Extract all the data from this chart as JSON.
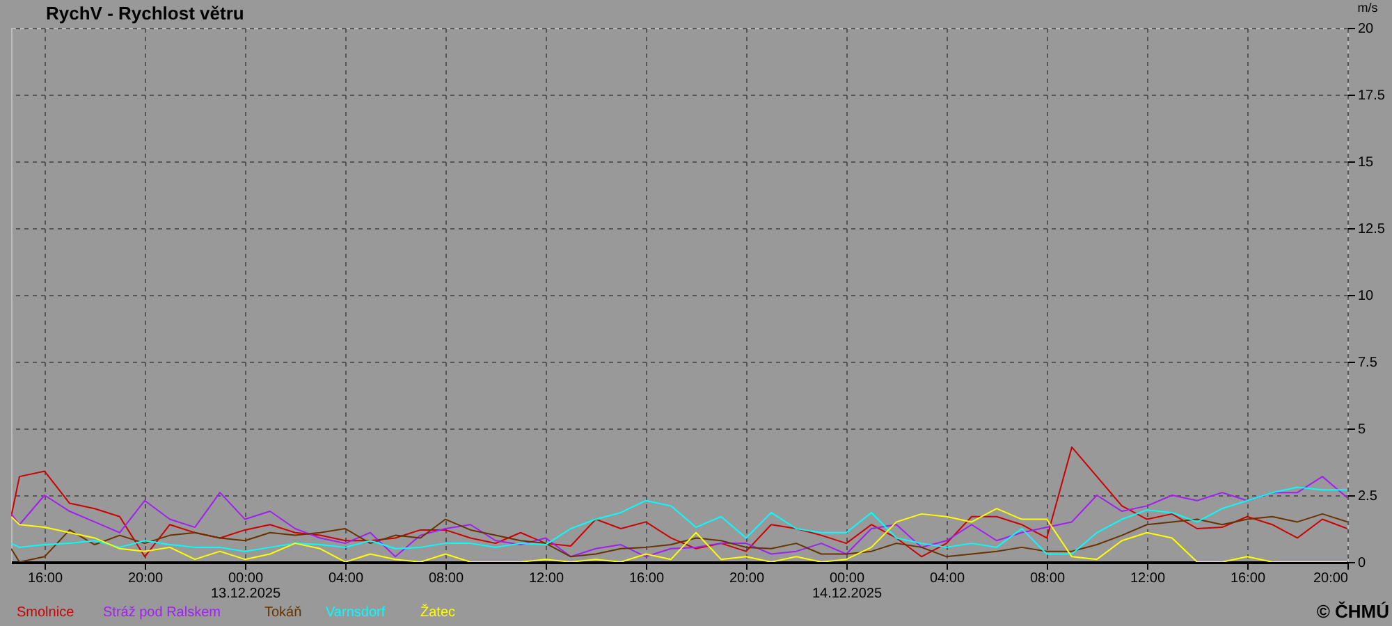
{
  "chart_data": {
    "type": "line",
    "title": "RychV - Rychlost větru",
    "ylabel": "m/s",
    "annotations": [
      "© ČHMÚ"
    ],
    "legend": "bottom left",
    "grid": true,
    "x": [
      "2025-12-12T14:40",
      "2025-12-12T15:00",
      "2025-12-12T16:00",
      "2025-12-12T17:00",
      "2025-12-12T18:00",
      "2025-12-12T19:00",
      "2025-12-12T20:00",
      "2025-12-12T21:00",
      "2025-12-12T22:00",
      "2025-12-12T23:00",
      "2025-12-13T00:00",
      "2025-12-13T01:00",
      "2025-12-13T02:00",
      "2025-12-13T03:00",
      "2025-12-13T04:00",
      "2025-12-13T05:00",
      "2025-12-13T06:00",
      "2025-12-13T07:00",
      "2025-12-13T08:00",
      "2025-12-13T09:00",
      "2025-12-13T10:00",
      "2025-12-13T11:00",
      "2025-12-13T12:00",
      "2025-12-13T13:00",
      "2025-12-13T14:00",
      "2025-12-13T15:00",
      "2025-12-13T16:00",
      "2025-12-13T17:00",
      "2025-12-13T18:00",
      "2025-12-13T19:00",
      "2025-12-13T20:00",
      "2025-12-13T21:00",
      "2025-12-13T22:00",
      "2025-12-13T23:00",
      "2025-12-14T00:00",
      "2025-12-14T01:00",
      "2025-12-14T02:00",
      "2025-12-14T03:00",
      "2025-12-14T04:00",
      "2025-12-14T05:00",
      "2025-12-14T06:00",
      "2025-12-14T07:00",
      "2025-12-14T08:00",
      "2025-12-14T09:00",
      "2025-12-14T10:00",
      "2025-12-14T11:00",
      "2025-12-14T12:00",
      "2025-12-14T13:00",
      "2025-12-14T14:00",
      "2025-12-14T15:00",
      "2025-12-14T16:00",
      "2025-12-14T17:00",
      "2025-12-14T18:00",
      "2025-12-14T19:00",
      "2025-12-14T20:00"
    ],
    "xlim": [
      "2025-12-12T14:40",
      "2025-12-14T20:00"
    ],
    "xticks": [
      {
        "value": "2025-12-12T16:00",
        "label": "16:00"
      },
      {
        "value": "2025-12-12T20:00",
        "label": "20:00"
      },
      {
        "value": "2025-12-13T00:00",
        "label": "00:00\n13.12.2025"
      },
      {
        "value": "2025-12-13T04:00",
        "label": "04:00"
      },
      {
        "value": "2025-12-13T08:00",
        "label": "08:00"
      },
      {
        "value": "2025-12-13T12:00",
        "label": "12:00"
      },
      {
        "value": "2025-12-13T16:00",
        "label": "16:00"
      },
      {
        "value": "2025-12-13T20:00",
        "label": "20:00"
      },
      {
        "value": "2025-12-14T00:00",
        "label": "00:00\n14.12.2025"
      },
      {
        "value": "2025-12-14T04:00",
        "label": "04:00"
      },
      {
        "value": "2025-12-14T08:00",
        "label": "08:00"
      },
      {
        "value": "2025-12-14T12:00",
        "label": "12:00"
      },
      {
        "value": "2025-12-14T16:00",
        "label": "16:00"
      },
      {
        "value": "2025-12-14T20:00",
        "label": "20:00"
      }
    ],
    "ylim": [
      0,
      20
    ],
    "yticks": [
      0,
      2.5,
      5,
      7.5,
      10,
      12.5,
      15,
      17.5,
      20
    ],
    "series": [
      {
        "name": "Smolnice",
        "color": "#cc0000",
        "values": [
          1.7,
          3.2,
          3.4,
          2.2,
          2.0,
          1.7,
          0.2,
          1.4,
          1.1,
          0.9,
          1.2,
          1.4,
          1.1,
          1.0,
          0.8,
          0.8,
          0.9,
          1.2,
          1.2,
          0.9,
          0.7,
          1.1,
          0.7,
          0.6,
          1.6,
          1.25,
          1.5,
          0.9,
          0.5,
          0.7,
          0.4,
          1.4,
          1.25,
          1.0,
          0.7,
          1.4,
          0.9,
          0.2,
          0.7,
          1.7,
          1.7,
          1.4,
          0.9,
          4.3,
          3.2,
          2.1,
          1.6,
          1.8,
          1.25,
          1.3,
          1.7,
          1.4,
          0.9,
          1.6,
          1.25
        ]
      },
      {
        "name": "Stráž pod Ralskem",
        "color": "#a020f0",
        "values": [
          1.8,
          1.4,
          2.5,
          1.9,
          1.5,
          1.1,
          2.3,
          1.6,
          1.3,
          2.6,
          1.6,
          1.9,
          1.25,
          0.9,
          0.7,
          1.1,
          0.2,
          1.0,
          1.25,
          1.4,
          0.8,
          0.65,
          0.9,
          0.2,
          0.5,
          0.65,
          0.2,
          0.5,
          0.55,
          0.7,
          0.7,
          0.3,
          0.4,
          0.7,
          0.3,
          1.25,
          1.4,
          0.55,
          0.8,
          1.4,
          0.8,
          1.1,
          1.3,
          1.5,
          2.5,
          1.9,
          2.1,
          2.5,
          2.3,
          2.6,
          2.3,
          2.6,
          2.6,
          3.2,
          2.4
        ]
      },
      {
        "name": "Tokáň",
        "color": "#663300",
        "values": [
          0.5,
          0,
          0.2,
          1.2,
          0.65,
          1.0,
          0.7,
          1.0,
          1.1,
          0.9,
          0.8,
          1.1,
          1.0,
          1.1,
          1.25,
          0.7,
          1.0,
          0.9,
          1.6,
          1.2,
          1.0,
          0.8,
          0.7,
          0.2,
          0.3,
          0.5,
          0.55,
          0.65,
          0.9,
          0.8,
          0.55,
          0.5,
          0.7,
          0.3,
          0.3,
          0.4,
          0.7,
          0.55,
          0.2,
          0.3,
          0.4,
          0.55,
          0.4,
          0.4,
          0.65,
          1.0,
          1.4,
          1.5,
          1.6,
          1.4,
          1.6,
          1.7,
          1.5,
          1.8,
          1.5
        ]
      },
      {
        "name": "Varnsdorf",
        "color": "#00ffff",
        "values": [
          0.7,
          0.55,
          0.65,
          0.7,
          0.8,
          0.55,
          0.8,
          0.65,
          0.55,
          0.55,
          0.4,
          0.55,
          0.7,
          0.65,
          0.55,
          0.8,
          0.5,
          0.55,
          0.7,
          0.7,
          0.55,
          0.7,
          0.65,
          1.25,
          1.6,
          1.85,
          2.3,
          2.1,
          1.3,
          1.7,
          0.9,
          1.85,
          1.25,
          1.1,
          1.1,
          1.85,
          0.9,
          0.7,
          0.55,
          0.7,
          0.55,
          1.25,
          0.3,
          0.3,
          1.1,
          1.6,
          1.95,
          1.85,
          1.5,
          2.0,
          2.3,
          2.6,
          2.8,
          2.7,
          2.7
        ]
      },
      {
        "name": "Žatec",
        "color": "#ffff00",
        "values": [
          1.7,
          1.4,
          1.3,
          1.1,
          0.9,
          0.5,
          0.4,
          0.55,
          0.1,
          0.4,
          0.1,
          0.3,
          0.7,
          0.5,
          0,
          0.3,
          0.1,
          0,
          0.3,
          0,
          0,
          0,
          0.1,
          0,
          0.1,
          0,
          0.3,
          0.1,
          1.1,
          0.1,
          0.2,
          0,
          0.2,
          0,
          0.1,
          0.55,
          1.5,
          1.8,
          1.7,
          1.5,
          2.0,
          1.6,
          1.6,
          0.2,
          0.1,
          0.8,
          1.1,
          0.9,
          0,
          0,
          0.2,
          0,
          0,
          0,
          0
        ]
      }
    ]
  }
}
